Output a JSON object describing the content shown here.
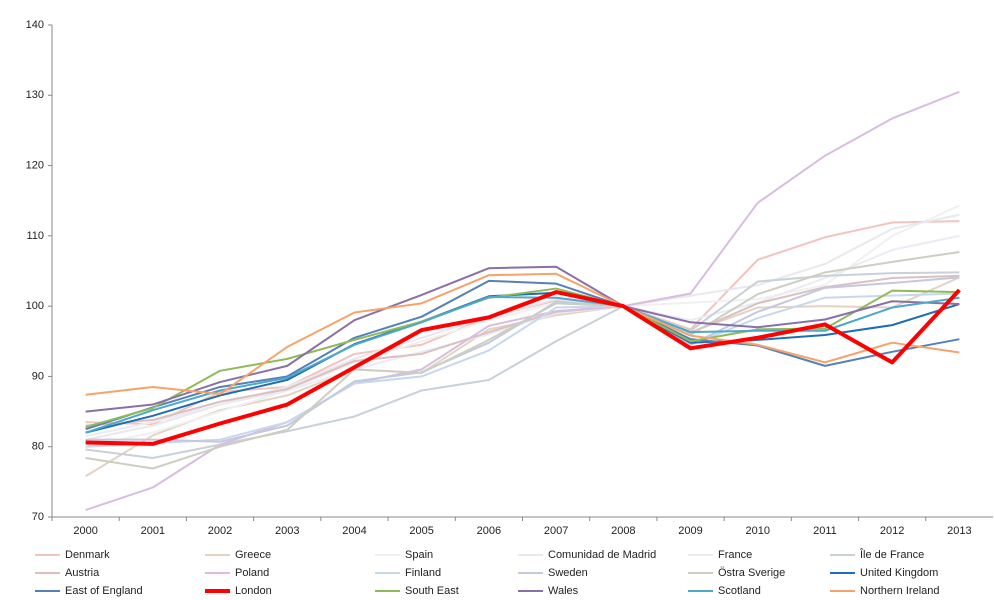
{
  "chart_data": {
    "type": "line",
    "categories": [
      "2000",
      "2001",
      "2002",
      "2003",
      "2004",
      "2005",
      "2006",
      "2007",
      "2008",
      "2009",
      "2010",
      "2011",
      "2012",
      "2013"
    ],
    "ylim": [
      70,
      140
    ],
    "yticks": [
      70,
      80,
      90,
      100,
      110,
      120,
      130,
      140
    ],
    "grid": false,
    "series": [
      {
        "name": "Denmark",
        "color": "#f2c4c0",
        "values": [
          83.5,
          83.2,
          87.8,
          88.5,
          93.2,
          94.5,
          98.5,
          100.8,
          100,
          96.7,
          106.6,
          109.8,
          111.9,
          112.1
        ]
      },
      {
        "name": "Greece",
        "color": "#e3d3c3",
        "values": [
          75.8,
          81.6,
          85.2,
          87.3,
          91,
          90.5,
          96.7,
          98.7,
          100,
          96.3,
          99.8,
          100,
          99.8,
          104.1
        ]
      },
      {
        "name": "Spain",
        "color": "#f0f0f0",
        "values": [
          80,
          82,
          85,
          88,
          92,
          95,
          98,
          100.5,
          100,
          100.5,
          101,
          103,
          110,
          114.3
        ]
      },
      {
        "name": "Comunidad de Madrid",
        "color": "#e8e8ee",
        "values": [
          81,
          83,
          86,
          88.5,
          92.5,
          95.5,
          98.5,
          101,
          100,
          101.5,
          103,
          106,
          111,
          113
        ]
      },
      {
        "name": "France",
        "color": "#ebebf4",
        "values": [
          81.5,
          83.5,
          86,
          88,
          91,
          93.5,
          96,
          99,
          100,
          98,
          100.5,
          104,
          108,
          110
        ]
      },
      {
        "name": "Île de France",
        "color": "#c8d0d8",
        "values": [
          79.6,
          78.4,
          80.3,
          82.2,
          84.3,
          88,
          89.5,
          95,
          100,
          96.5,
          103.5,
          104.3,
          104.7,
          104.8
        ]
      },
      {
        "name": "Austria",
        "color": "#dcc0c0",
        "values": [
          83,
          83.8,
          86.4,
          88.2,
          92.2,
          93.2,
          96.3,
          99.2,
          100,
          96.2,
          100.4,
          102.7,
          104,
          104.3
        ]
      },
      {
        "name": "Poland",
        "color": "#d8bde0",
        "values": [
          71,
          74.2,
          80.3,
          83.5,
          89,
          91,
          97.2,
          99.3,
          100,
          101.8,
          114.7,
          121.4,
          126.7,
          130.5
        ]
      },
      {
        "name": "Finland",
        "color": "#c8d8ec",
        "values": [
          80,
          80.5,
          81,
          83.5,
          89,
          90,
          93.7,
          99.8,
          100,
          94.5,
          98.3,
          101.2,
          101.5,
          101.8
        ]
      },
      {
        "name": "Sweden",
        "color": "#c4c8e0",
        "values": [
          81,
          81,
          80.7,
          83,
          89.3,
          90.6,
          94.8,
          100.6,
          100,
          94.5,
          99.2,
          102.6,
          103.3,
          104.1
        ]
      },
      {
        "name": "Östra Sverige",
        "color": "#cccfc0",
        "values": [
          78.4,
          76.9,
          80,
          82.4,
          91,
          90.5,
          95.2,
          100.4,
          100,
          95.9,
          101.7,
          104.8,
          106.3,
          107.7
        ]
      },
      {
        "name": "United Kingdom",
        "color": "#1f6db3",
        "values": [
          82,
          84.4,
          87.3,
          89.5,
          94.6,
          97.8,
          101.4,
          101.9,
          100,
          94.8,
          95.2,
          95.9,
          97.3,
          100.3
        ]
      },
      {
        "name": "East of England",
        "color": "#5580b8",
        "values": [
          82.5,
          85.6,
          88.5,
          90,
          95.5,
          98.5,
          103.6,
          103.2,
          100,
          95.3,
          94.4,
          91.5,
          93.5,
          95.3
        ]
      },
      {
        "name": "London",
        "color": "#ff0000",
        "line_width": 4,
        "values": [
          80.6,
          80.4,
          83.3,
          86,
          91.3,
          96.6,
          98.4,
          102,
          100,
          94,
          95.5,
          97.4,
          92,
          102.3
        ]
      },
      {
        "name": "South East",
        "color": "#8fba5a",
        "values": [
          82.8,
          85.5,
          90.8,
          92.5,
          95.2,
          97.8,
          101.2,
          102.5,
          100,
          95,
          96.7,
          96.8,
          102.2,
          102
        ]
      },
      {
        "name": "Wales",
        "color": "#8a70a8",
        "values": [
          85,
          86,
          89.2,
          91.5,
          98,
          101.6,
          105.4,
          105.6,
          100,
          97.7,
          97,
          98.1,
          100.7,
          100.3
        ]
      },
      {
        "name": "Scotland",
        "color": "#4ea8c8",
        "values": [
          82,
          85.2,
          88,
          89.8,
          94.5,
          97.7,
          101.3,
          101.2,
          100,
          96.3,
          96.5,
          96.5,
          99.8,
          101.2
        ]
      },
      {
        "name": "Northern Ireland",
        "color": "#f4a46a",
        "values": [
          87.4,
          88.5,
          87.5,
          94.2,
          99.1,
          100.4,
          104.4,
          104.6,
          100,
          95.8,
          94.5,
          92,
          94.8,
          93.4
        ]
      }
    ]
  }
}
